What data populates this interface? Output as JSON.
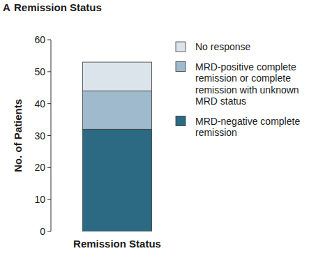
{
  "chart_data": {
    "type": "bar",
    "stacked": true,
    "panel_label": "A",
    "title": "Remission Status",
    "y_label": "No. of Patients",
    "categories": [
      "Remission Status"
    ],
    "series": [
      {
        "name": "MRD-negative complete remission",
        "color": "#2c6982",
        "values": [
          32
        ]
      },
      {
        "name": "MRD-positive complete remission or complete remission with unknown MRD status",
        "color": "#9fbacd",
        "values": [
          12
        ]
      },
      {
        "name": "No response",
        "color": "#dbe4ea",
        "values": [
          9
        ]
      }
    ],
    "ylim": [
      0,
      60
    ],
    "yticks": [
      0,
      10,
      20,
      30,
      40,
      50,
      60
    ],
    "legend": "right"
  }
}
